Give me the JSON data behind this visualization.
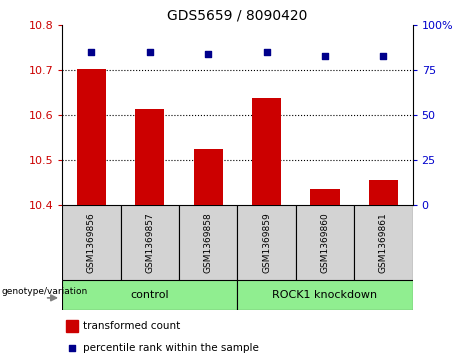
{
  "title": "GDS5659 / 8090420",
  "samples": [
    "GSM1369856",
    "GSM1369857",
    "GSM1369858",
    "GSM1369859",
    "GSM1369860",
    "GSM1369861"
  ],
  "transformed_counts": [
    10.703,
    10.615,
    10.525,
    10.638,
    10.435,
    10.455
  ],
  "percentile_ranks": [
    85,
    85,
    84,
    85,
    83,
    83
  ],
  "ylim_left": [
    10.4,
    10.8
  ],
  "yticks_left": [
    10.4,
    10.5,
    10.6,
    10.7,
    10.8
  ],
  "ylim_right": [
    0,
    100
  ],
  "yticks_right": [
    0,
    25,
    50,
    75,
    100
  ],
  "group_info": [
    {
      "label": "control",
      "start": 0,
      "end": 2,
      "color": "#90EE90"
    },
    {
      "label": "ROCK1 knockdown",
      "start": 3,
      "end": 5,
      "color": "#90EE90"
    }
  ],
  "bar_color": "#CC0000",
  "marker_color": "#00008B",
  "bar_width": 0.5,
  "left_tick_color": "#CC0000",
  "right_tick_color": "#0000CC",
  "genotype_label": "genotype/variation",
  "legend_items": [
    {
      "color": "#CC0000",
      "marker": "s",
      "label": "transformed count"
    },
    {
      "color": "#00008B",
      "marker": "s",
      "label": "percentile rank within the sample"
    }
  ],
  "grid_lines": [
    10.5,
    10.6,
    10.7
  ],
  "sample_box_color": "#D3D3D3"
}
